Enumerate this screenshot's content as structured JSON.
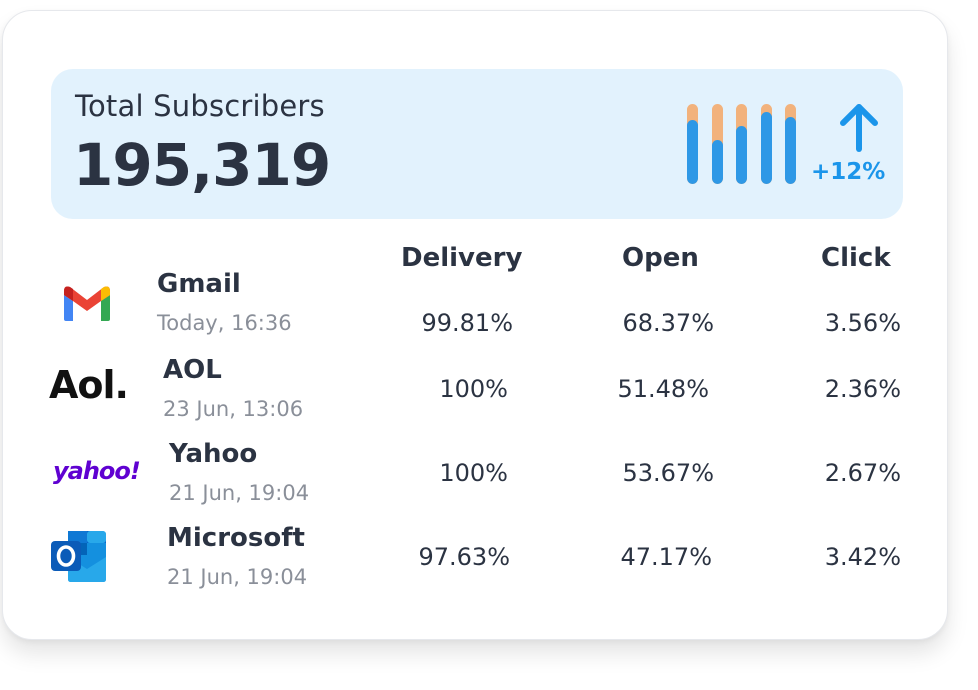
{
  "summary": {
    "label": "Total Subscribers",
    "value": "195,319",
    "trend": "+12%",
    "trend_icon": "arrow-up-icon",
    "bar_levels": [
      0.8,
      0.55,
      0.72,
      0.9,
      0.84
    ],
    "colors": {
      "panel": "#e2f2fd",
      "bar_fill": "#2e98e6",
      "bar_track": "#f2b27c",
      "trend": "#1b95ea"
    }
  },
  "columns": {
    "delivery": "Delivery",
    "open": "Open",
    "click": "Click"
  },
  "providers": [
    {
      "name": "Gmail",
      "time": "Today, 16:36",
      "icon": "gmail-icon",
      "delivery": "99.81%",
      "open": "68.37%",
      "click": "3.56%"
    },
    {
      "name": "AOL",
      "time": "23 Jun, 13:06",
      "icon": "aol-logo",
      "logo_text": "Aol.",
      "delivery": "100%",
      "open": "51.48%",
      "click": "2.36%"
    },
    {
      "name": "Yahoo",
      "time": "21 Jun, 19:04",
      "icon": "yahoo-logo",
      "logo_text": "yahoo!",
      "delivery": "100%",
      "open": "53.67%",
      "click": "2.67%"
    },
    {
      "name": "Microsoft",
      "time": "21 Jun, 19:04",
      "icon": "outlook-icon",
      "delivery": "97.63%",
      "open": "47.17%",
      "click": "3.42%"
    }
  ]
}
